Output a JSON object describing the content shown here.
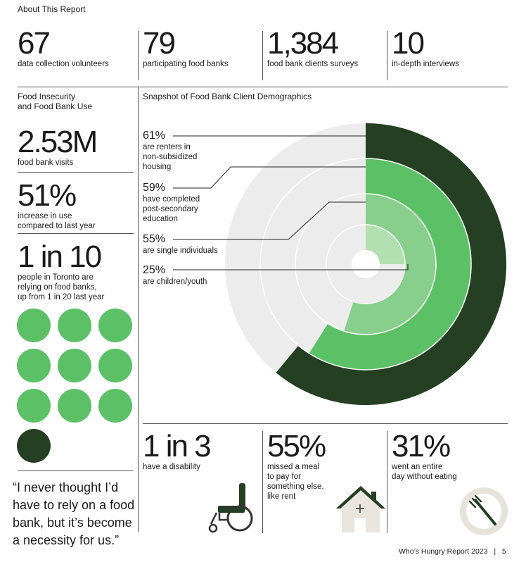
{
  "header": {
    "title": "About This Report"
  },
  "top_stats": [
    {
      "value": "67",
      "label": "data collection volunteers"
    },
    {
      "value": "79",
      "label": "participating food banks"
    },
    {
      "value": "1,384",
      "label": "food bank clients surveys"
    },
    {
      "value": "10",
      "label": "in-depth interviews"
    }
  ],
  "left": {
    "section_title": "Food Insecurity\nand Food Bank Use",
    "visits": {
      "value": "2.53M",
      "label": "food bank visits"
    },
    "increase": {
      "value": "51%",
      "label": "increase in use\ncompared to last year"
    },
    "ratio": {
      "value": "1 in 10",
      "label": "people in Toronto are\nrelying on food banks,\nup from 1 in 20 last year"
    },
    "quote": "“I never thought I’d have to rely on a food bank, but it’s become a necessity for us.”"
  },
  "snapshot": {
    "title": "Snapshot of Food Bank Client Demographics",
    "items": [
      {
        "value": "61%",
        "label": "are renters in\nnon-subsidized\nhousing",
        "color": "#243f22"
      },
      {
        "value": "59%",
        "label": "have completed\npost-secondary\neducation",
        "color": "#5cc166"
      },
      {
        "value": "55%",
        "label": "are single individuals",
        "color": "#88ce8c"
      },
      {
        "value": "25%",
        "label": "are children/youth",
        "color": "#b2e0b0"
      }
    ],
    "track_color": "#ececec"
  },
  "bottom_stats": [
    {
      "value": "1 in 3",
      "label": "have a disability",
      "icon": "wheelchair-icon"
    },
    {
      "value": "55%",
      "label": "missed a meal\nto pay for\nsomething else,\nlike rent",
      "icon": "house-icon"
    },
    {
      "value": "31%",
      "label": "went an entire\nday without eating",
      "icon": "plate-fork-icon"
    }
  ],
  "footer": {
    "report": "Who’s Hungry Report 2023",
    "separator": "|",
    "page": "5"
  }
}
